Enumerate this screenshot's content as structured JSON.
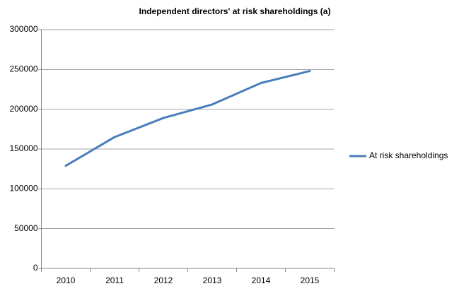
{
  "chart_data": {
    "type": "line",
    "title": "Independent directors' at risk shareholdings (a)",
    "categories": [
      "2010",
      "2011",
      "2012",
      "2013",
      "2014",
      "2015"
    ],
    "series": [
      {
        "name": "At risk shareholdings",
        "color": "#4a7ebb",
        "values": [
          129000,
          165000,
          189000,
          206000,
          233000,
          248000
        ]
      }
    ],
    "ylim": [
      0,
      300000
    ],
    "yticks": [
      0,
      50000,
      100000,
      150000,
      200000,
      250000,
      300000
    ],
    "grid": true,
    "legend": "right"
  }
}
